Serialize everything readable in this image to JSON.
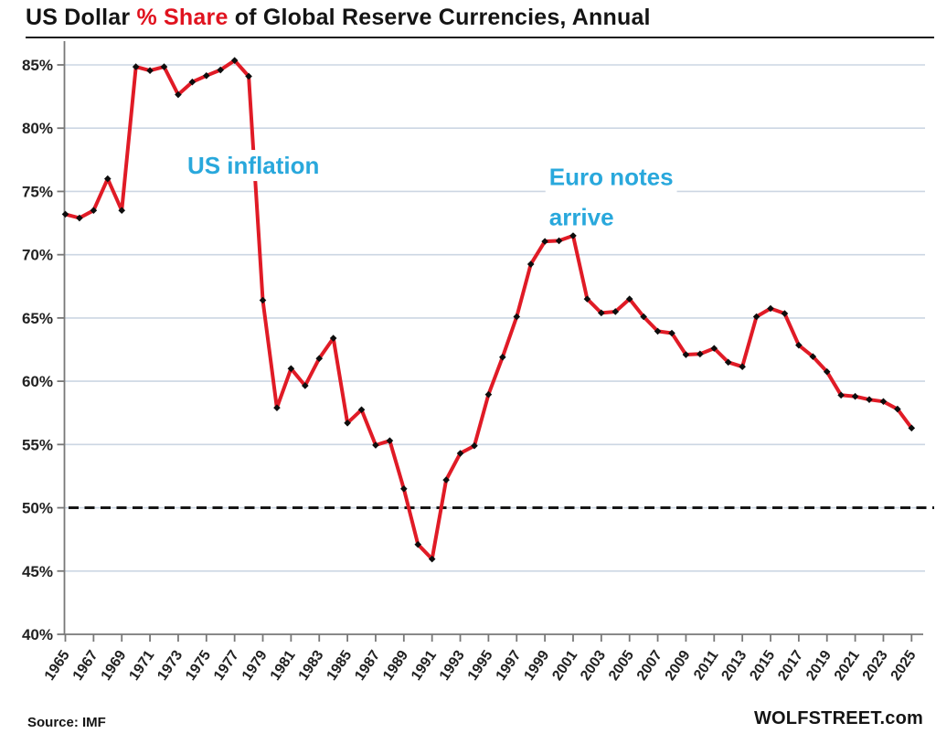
{
  "title": {
    "part1": "US Dollar ",
    "part2": "% Share",
    "part3": " of Global Reserve Currencies, Annual"
  },
  "footer": {
    "source": "Source: IMF",
    "brand": "WOLFSTREET.com"
  },
  "colors": {
    "line": "#e01b26",
    "marker": "#0d0d0d",
    "grid": "#ccd6e3",
    "axis": "#787878",
    "reference": "#161616",
    "annotation": "#29a8dc",
    "title_accent": "#e0131f"
  },
  "chart_data": {
    "type": "line",
    "title": "US Dollar % Share of Global Reserve Currencies, Annual",
    "xlabel": "",
    "ylabel": "",
    "ylim": [
      40,
      85
    ],
    "ytick_step": 5,
    "ytick_suffix": "%",
    "xtick_step": 2,
    "grid": true,
    "legend": "none",
    "series_name": "US dollar share of global reserve currencies (%)",
    "x": [
      1965,
      1966,
      1967,
      1968,
      1969,
      1970,
      1971,
      1972,
      1973,
      1974,
      1975,
      1976,
      1977,
      1978,
      1979,
      1980,
      1981,
      1982,
      1983,
      1984,
      1985,
      1986,
      1987,
      1988,
      1989,
      1990,
      1991,
      1992,
      1993,
      1994,
      1995,
      1996,
      1997,
      1998,
      1999,
      2000,
      2001,
      2002,
      2003,
      2004,
      2005,
      2006,
      2007,
      2008,
      2009,
      2010,
      2011,
      2012,
      2013,
      2014,
      2015,
      2016,
      2017,
      2018,
      2019,
      2020,
      2021,
      2022,
      2023,
      2024,
      2025
    ],
    "values": [
      73.2,
      72.9,
      73.5,
      76.0,
      73.5,
      84.85,
      84.55,
      84.85,
      82.65,
      83.65,
      84.15,
      84.6,
      85.35,
      84.1,
      66.4,
      57.9,
      61.0,
      59.65,
      61.8,
      63.4,
      56.7,
      57.75,
      54.95,
      55.3,
      51.5,
      47.1,
      45.95,
      52.2,
      54.3,
      54.9,
      58.95,
      61.9,
      65.1,
      69.25,
      71.05,
      71.1,
      71.5,
      66.5,
      65.4,
      65.5,
      66.5,
      65.1,
      63.95,
      63.8,
      62.1,
      62.15,
      62.6,
      61.5,
      61.15,
      65.1,
      65.75,
      65.35,
      62.85,
      61.95,
      60.75,
      58.9,
      58.8,
      58.55,
      58.4,
      57.8,
      56.3
    ],
    "reference_line": {
      "value": 50,
      "style": "dashed",
      "color": "#161616"
    },
    "annotations": [
      {
        "lines": [
          "US inflation"
        ],
        "year": 1973.65,
        "value": 76.4
      },
      {
        "lines": [
          "Euro notes",
          "arrive"
        ],
        "year": 1999.3,
        "value": 75.5
      }
    ]
  }
}
